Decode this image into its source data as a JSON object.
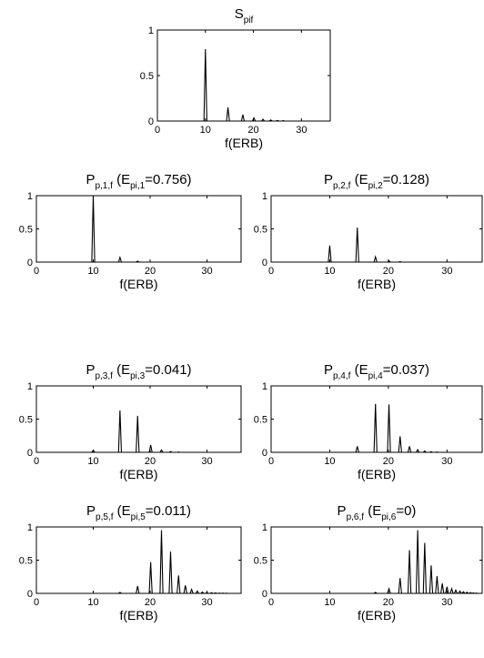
{
  "chart_data": [
    {
      "type": "line",
      "title": "S",
      "title_sub": "pif",
      "title_suffix_main": "",
      "title_suffix_sub": "",
      "title_end": "",
      "xlabel": "f(ERB)",
      "ylabel": "",
      "xlim": [
        0,
        36
      ],
      "ylim": [
        0,
        1
      ],
      "xticks": [
        0,
        10,
        20,
        30
      ],
      "yticks": [
        0,
        0.5,
        1
      ],
      "ytick_labels": [
        "0",
        "0.5",
        "1"
      ],
      "grid": false,
      "series": [
        {
          "color": "#000000",
          "peaks": [
            {
              "x": 10,
              "y": 0.79
            },
            {
              "x": 14.7,
              "y": 0.15
            },
            {
              "x": 17.8,
              "y": 0.07
            },
            {
              "x": 20.1,
              "y": 0.035
            },
            {
              "x": 22,
              "y": 0.02
            },
            {
              "x": 23.6,
              "y": 0.012
            },
            {
              "x": 25,
              "y": 0.007
            },
            {
              "x": 26.2,
              "y": 0.004
            }
          ]
        }
      ]
    },
    {
      "type": "line",
      "title": "P",
      "title_sub": "p,1,f",
      "title_suffix_main": " (E",
      "title_suffix_sub": "pi,1",
      "title_end": "=0.756)",
      "xlabel": "f(ERB)",
      "ylabel": "",
      "xlim": [
        0,
        36
      ],
      "ylim": [
        0,
        1
      ],
      "xticks": [
        0,
        10,
        20,
        30
      ],
      "yticks": [
        0,
        0.5,
        1
      ],
      "ytick_labels": [
        "0",
        "0.5",
        "1"
      ],
      "grid": false,
      "series": [
        {
          "color": "#000000",
          "peaks": [
            {
              "x": 10,
              "y": 1.0
            },
            {
              "x": 14.7,
              "y": 0.07
            },
            {
              "x": 17.8,
              "y": 0.015
            }
          ]
        }
      ]
    },
    {
      "type": "line",
      "title": "P",
      "title_sub": "p,2,f",
      "title_suffix_main": " (E",
      "title_suffix_sub": "pi,2",
      "title_end": "=0.128)",
      "xlabel": "f(ERB)",
      "ylabel": "",
      "xlim": [
        0,
        36
      ],
      "ylim": [
        0,
        1
      ],
      "xticks": [
        0,
        10,
        20,
        30
      ],
      "yticks": [
        0,
        0.5,
        1
      ],
      "ytick_labels": [
        "0",
        "0.5",
        "1"
      ],
      "grid": false,
      "series": [
        {
          "color": "#000000",
          "peaks": [
            {
              "x": 10,
              "y": 0.25
            },
            {
              "x": 14.7,
              "y": 0.52
            },
            {
              "x": 17.8,
              "y": 0.08
            },
            {
              "x": 20.1,
              "y": 0.02
            },
            {
              "x": 22,
              "y": 0.008
            }
          ]
        }
      ]
    },
    {
      "type": "line",
      "title": "P",
      "title_sub": "p,3,f",
      "title_suffix_main": " (E",
      "title_suffix_sub": "pi,3",
      "title_end": "=0.041)",
      "xlabel": "f(ERB)",
      "ylabel": "",
      "xlim": [
        0,
        36
      ],
      "ylim": [
        0,
        1
      ],
      "xticks": [
        0,
        10,
        20,
        30
      ],
      "yticks": [
        0,
        0.5,
        1
      ],
      "ytick_labels": [
        "0",
        "0.5",
        "1"
      ],
      "grid": false,
      "series": [
        {
          "color": "#000000",
          "peaks": [
            {
              "x": 10,
              "y": 0.03
            },
            {
              "x": 14.7,
              "y": 0.63
            },
            {
              "x": 17.8,
              "y": 0.55
            },
            {
              "x": 20.1,
              "y": 0.11
            },
            {
              "x": 22,
              "y": 0.035
            },
            {
              "x": 23.6,
              "y": 0.012
            },
            {
              "x": 25,
              "y": 0.005
            }
          ]
        }
      ]
    },
    {
      "type": "line",
      "title": "P",
      "title_sub": "p,4,f",
      "title_suffix_main": " (E",
      "title_suffix_sub": "pi,4",
      "title_end": "=0.037)",
      "xlabel": "f(ERB)",
      "ylabel": "",
      "xlim": [
        0,
        36
      ],
      "ylim": [
        0,
        1
      ],
      "xticks": [
        0,
        10,
        20,
        30
      ],
      "yticks": [
        0,
        0.5,
        1
      ],
      "ytick_labels": [
        "0",
        "0.5",
        "1"
      ],
      "grid": false,
      "series": [
        {
          "color": "#000000",
          "peaks": [
            {
              "x": 14.7,
              "y": 0.09
            },
            {
              "x": 17.8,
              "y": 0.73
            },
            {
              "x": 20.1,
              "y": 0.72
            },
            {
              "x": 22,
              "y": 0.24
            },
            {
              "x": 23.6,
              "y": 0.09
            },
            {
              "x": 25,
              "y": 0.04
            },
            {
              "x": 26.2,
              "y": 0.02
            },
            {
              "x": 27.3,
              "y": 0.01
            },
            {
              "x": 28.3,
              "y": 0.005
            }
          ]
        }
      ]
    },
    {
      "type": "line",
      "title": "P",
      "title_sub": "p,5,f",
      "title_suffix_main": " (E",
      "title_suffix_sub": "pi,5",
      "title_end": "=0.011)",
      "xlabel": "f(ERB)",
      "ylabel": "",
      "xlim": [
        0,
        36
      ],
      "ylim": [
        0,
        1
      ],
      "xticks": [
        0,
        10,
        20,
        30
      ],
      "yticks": [
        0,
        0.5,
        1
      ],
      "ytick_labels": [
        "0",
        "0.5",
        "1"
      ],
      "grid": false,
      "series": [
        {
          "color": "#000000",
          "peaks": [
            {
              "x": 14.7,
              "y": 0.015
            },
            {
              "x": 17.8,
              "y": 0.11
            },
            {
              "x": 20.1,
              "y": 0.47
            },
            {
              "x": 22,
              "y": 0.95
            },
            {
              "x": 23.6,
              "y": 0.63
            },
            {
              "x": 25,
              "y": 0.27
            },
            {
              "x": 26.2,
              "y": 0.12
            },
            {
              "x": 27.3,
              "y": 0.06
            },
            {
              "x": 28.3,
              "y": 0.035
            },
            {
              "x": 29.2,
              "y": 0.02
            },
            {
              "x": 30,
              "y": 0.014
            },
            {
              "x": 30.8,
              "y": 0.01
            },
            {
              "x": 31.5,
              "y": 0.007
            },
            {
              "x": 32.2,
              "y": 0.005
            },
            {
              "x": 32.8,
              "y": 0.004
            },
            {
              "x": 33.4,
              "y": 0.003
            }
          ]
        }
      ]
    },
    {
      "type": "line",
      "title": "P",
      "title_sub": "p,6,f",
      "title_suffix_main": " (E",
      "title_suffix_sub": "pi,6",
      "title_end": "=0)",
      "xlabel": "f(ERB)",
      "ylabel": "",
      "xlim": [
        0,
        36
      ],
      "ylim": [
        0,
        1
      ],
      "xticks": [
        0,
        10,
        20,
        30
      ],
      "yticks": [
        0,
        0.5,
        1
      ],
      "ytick_labels": [
        "0",
        "0.5",
        "1"
      ],
      "grid": false,
      "series": [
        {
          "color": "#000000",
          "peaks": [
            {
              "x": 17.8,
              "y": 0.015
            },
            {
              "x": 20.1,
              "y": 0.07
            },
            {
              "x": 22,
              "y": 0.23
            },
            {
              "x": 23.6,
              "y": 0.65
            },
            {
              "x": 25,
              "y": 0.95
            },
            {
              "x": 26.2,
              "y": 0.76
            },
            {
              "x": 27.3,
              "y": 0.42
            },
            {
              "x": 28.3,
              "y": 0.26
            },
            {
              "x": 29.2,
              "y": 0.15
            },
            {
              "x": 30,
              "y": 0.1
            },
            {
              "x": 30.8,
              "y": 0.07
            },
            {
              "x": 31.5,
              "y": 0.05
            },
            {
              "x": 32.2,
              "y": 0.035
            },
            {
              "x": 32.8,
              "y": 0.025
            },
            {
              "x": 33.4,
              "y": 0.018
            },
            {
              "x": 34,
              "y": 0.012
            },
            {
              "x": 34.5,
              "y": 0.008
            },
            {
              "x": 35,
              "y": 0.005
            }
          ]
        }
      ]
    }
  ]
}
